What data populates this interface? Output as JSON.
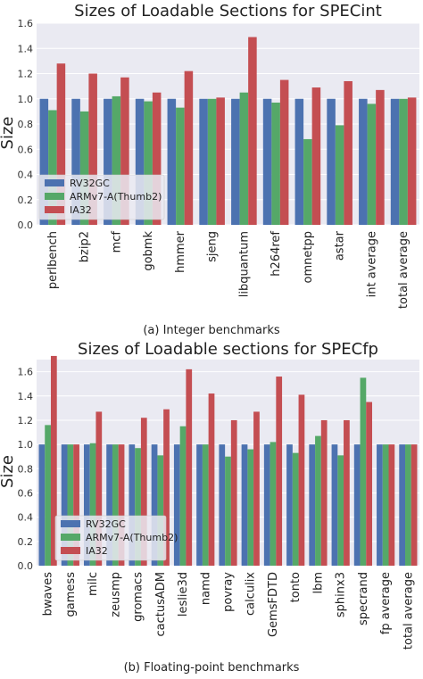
{
  "colors": {
    "RV32GC": "#4c72b0",
    "ARMv7-A(Thumb2)": "#55a868",
    "IA32": "#c44e52",
    "plot_bg": "#eaeaf2",
    "grid": "#ffffff"
  },
  "captions": {
    "top": "(a) Integer benchmarks",
    "bottom": "(b) Floating-point benchmarks"
  },
  "chart_data": [
    {
      "type": "bar",
      "title": "Sizes of Loadable Sections for SPECint",
      "ylabel": "Size",
      "ylim": [
        0,
        1.6
      ],
      "yticks": [
        "0.0",
        "0.2",
        "0.4",
        "0.6",
        "0.8",
        "1.0",
        "1.2",
        "1.4",
        "1.6"
      ],
      "grid": true,
      "legend": "lower-left",
      "categories": [
        "perlbench",
        "bzip2",
        "mcf",
        "gobmk",
        "hmmer",
        "sjeng",
        "libquantum",
        "h264ref",
        "omnetpp",
        "astar",
        "int average",
        "total average"
      ],
      "series": [
        {
          "name": "RV32GC",
          "values": [
            1.0,
            1.0,
            1.0,
            1.0,
            1.0,
            1.0,
            1.0,
            1.0,
            1.0,
            1.0,
            1.0,
            1.0
          ]
        },
        {
          "name": "ARMv7-A(Thumb2)",
          "values": [
            0.91,
            0.9,
            1.02,
            0.98,
            0.93,
            1.0,
            1.05,
            0.97,
            0.68,
            0.79,
            0.96,
            1.0
          ]
        },
        {
          "name": "IA32",
          "values": [
            1.28,
            1.2,
            1.17,
            1.05,
            1.22,
            1.01,
            1.49,
            1.15,
            1.09,
            1.14,
            1.07,
            1.01
          ]
        }
      ]
    },
    {
      "type": "bar",
      "title": "Sizes of Loadable sections for SPECfp",
      "ylabel": "Size",
      "ylim": [
        0,
        1.7
      ],
      "yticks": [
        "0.0",
        "0.2",
        "0.4",
        "0.6",
        "0.8",
        "1.0",
        "1.2",
        "1.4",
        "1.6"
      ],
      "grid": true,
      "legend": "lower-left",
      "categories": [
        "bwaves",
        "gamess",
        "milc",
        "zeusmp",
        "gromacs",
        "cactusADM",
        "leslie3d",
        "namd",
        "povray",
        "calculix",
        "GemsFDTD",
        "tonto",
        "lbm",
        "sphinx3",
        "specrand",
        "fp average",
        "total average"
      ],
      "series": [
        {
          "name": "RV32GC",
          "values": [
            1.0,
            1.0,
            1.0,
            1.0,
            1.0,
            1.0,
            1.0,
            1.0,
            1.0,
            1.0,
            1.0,
            1.0,
            1.0,
            1.0,
            1.0,
            1.0,
            1.0
          ]
        },
        {
          "name": "ARMv7-A(Thumb2)",
          "values": [
            1.16,
            1.0,
            1.01,
            1.0,
            0.97,
            0.91,
            1.15,
            1.0,
            0.9,
            0.96,
            1.02,
            0.93,
            1.07,
            0.91,
            1.55,
            1.0,
            1.0
          ]
        },
        {
          "name": "IA32",
          "values": [
            1.73,
            1.0,
            1.27,
            1.0,
            1.22,
            1.29,
            1.62,
            1.42,
            1.2,
            1.27,
            1.56,
            1.41,
            1.2,
            1.2,
            1.35,
            1.0,
            1.0
          ]
        }
      ]
    }
  ]
}
